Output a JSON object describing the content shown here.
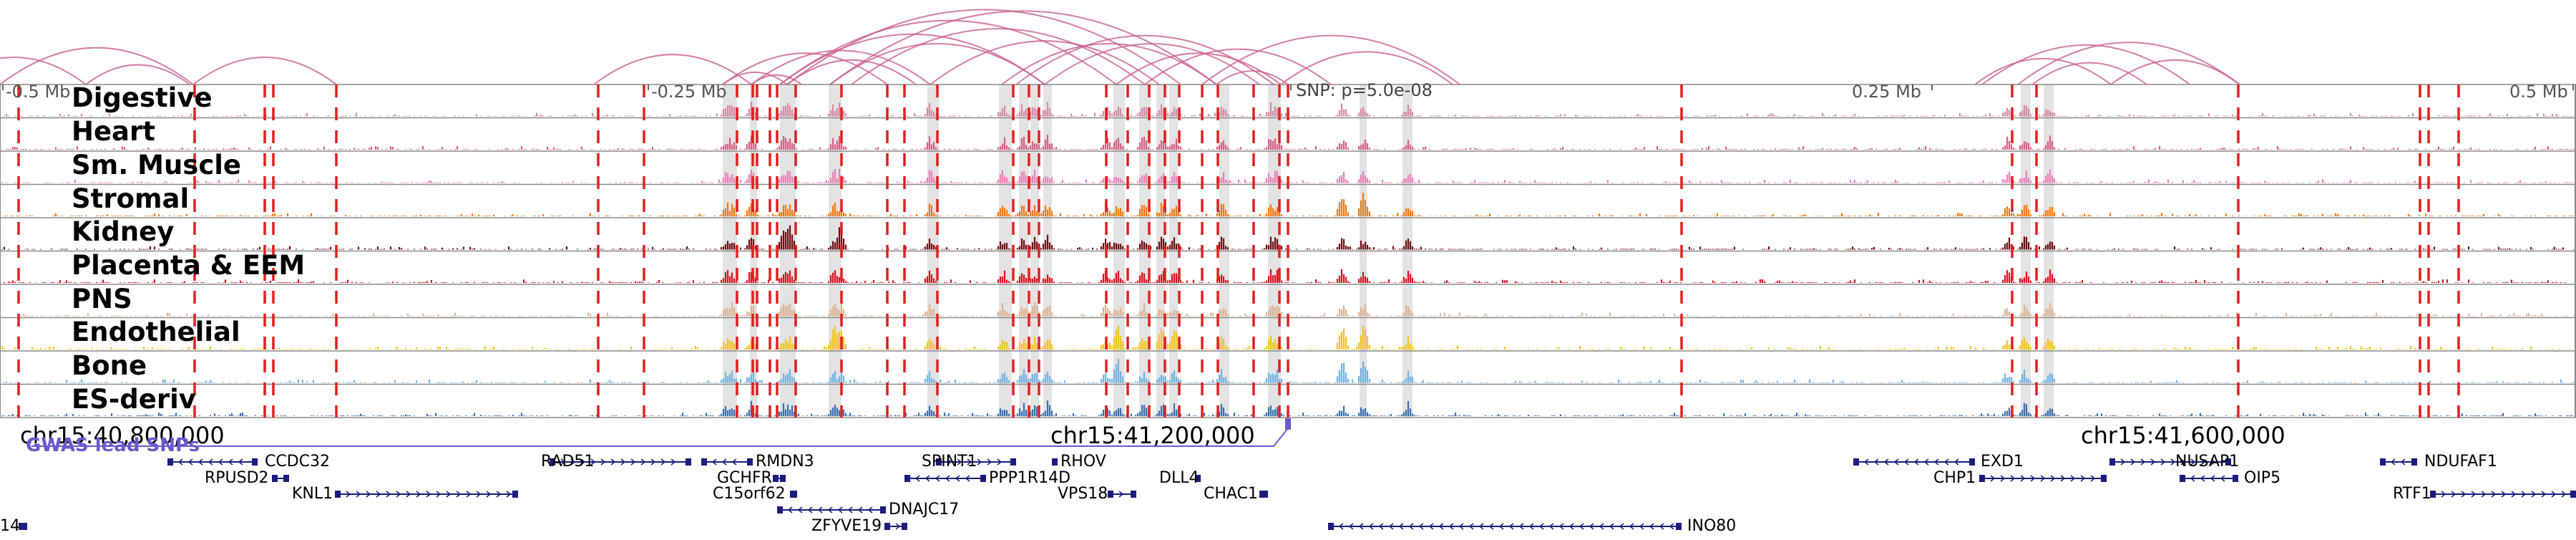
{
  "ruler": {
    "ticks": [
      "-0.5 Mb",
      "-0.25 Mb",
      "0.25 Mb",
      "0.5 Mb"
    ],
    "snp_label": "SNP: p=5.0e-08"
  },
  "tracks": [
    {
      "name": "Digestive",
      "color": "#d48aa8",
      "seed": 11
    },
    {
      "name": "Heart",
      "color": "#d65f80",
      "seed": 22
    },
    {
      "name": "Sm. Muscle",
      "color": "#ea7fb8",
      "seed": 33
    },
    {
      "name": "Stromal",
      "color": "#f07a15",
      "seed": 44
    },
    {
      "name": "Kidney",
      "color": "#6e0d13",
      "seed": 55
    },
    {
      "name": "Placenta & EEM",
      "color": "#dc1020",
      "seed": 66
    },
    {
      "name": "PNS",
      "color": "#dcb394",
      "seed": 77
    },
    {
      "name": "Endothelial",
      "color": "#f3c41c",
      "seed": 88
    },
    {
      "name": "Bone",
      "color": "#71b2e2",
      "seed": 99
    },
    {
      "name": "ES-deriv",
      "color": "#3a6fb0",
      "seed": 111
    }
  ],
  "coordinates": [
    "chr15:40,800,000",
    "chr15:41,200,000",
    "chr15:41,600,000"
  ],
  "gwas": {
    "label": "GWAS lead SNPs",
    "color": "#6a5acd"
  },
  "genes": [
    {
      "label": "CCDC32",
      "row": 0,
      "strand": "-"
    },
    {
      "label": "RAD51",
      "row": 0,
      "strand": "+"
    },
    {
      "label": "RMDN3",
      "row": 0,
      "strand": "-"
    },
    {
      "label": "SPINT1",
      "row": 0,
      "strand": "+"
    },
    {
      "label": "RHOV",
      "row": 0,
      "strand": "-"
    },
    {
      "label": "EXD1",
      "row": 0,
      "strand": "-"
    },
    {
      "label": "NUSAP1",
      "row": 0,
      "strand": "+"
    },
    {
      "label": "NDUFAF1",
      "row": 0,
      "strand": "-"
    },
    {
      "label": "RPUSD2",
      "row": 1,
      "strand": "+"
    },
    {
      "label": "GCHFR",
      "row": 1,
      "strand": "+"
    },
    {
      "label": "PPP1R14D",
      "row": 1,
      "strand": "-"
    },
    {
      "label": "DLL4",
      "row": 1,
      "strand": "+"
    },
    {
      "label": "CHP1",
      "row": 1,
      "strand": "+"
    },
    {
      "label": "OIP5",
      "row": 1,
      "strand": "-"
    },
    {
      "label": "KNL1",
      "row": 2,
      "strand": "+"
    },
    {
      "label": "C15orf62",
      "row": 2,
      "strand": "+"
    },
    {
      "label": "VPS18",
      "row": 2,
      "strand": "+"
    },
    {
      "label": "CHAC1",
      "row": 2,
      "strand": "+"
    },
    {
      "label": "RTF1",
      "row": 2,
      "strand": "+"
    },
    {
      "label": "DNAJC17",
      "row": 3,
      "strand": "-"
    },
    {
      "label": "ZFYVE19",
      "row": 4,
      "strand": "+"
    },
    {
      "label": "INO80",
      "row": 4,
      "strand": "-"
    },
    {
      "label": "14",
      "row": 4,
      "strand": "+"
    }
  ],
  "colors": {
    "arc": "#c9608f",
    "boundary": "#e02020",
    "highlight": "#d0d0d0",
    "gene": "#1c1c80",
    "grid": "#8a8a8a"
  }
}
